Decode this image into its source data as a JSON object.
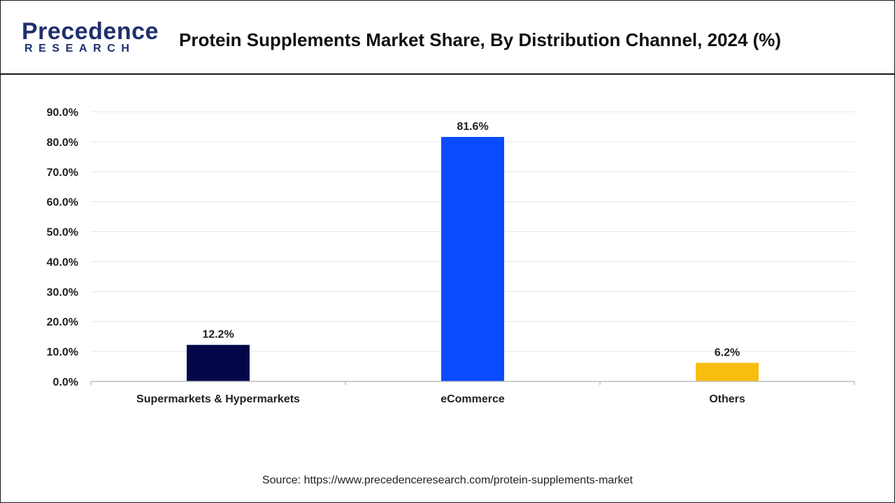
{
  "header": {
    "logo_word": "Precedence",
    "logo_sub": "RESEARCH",
    "title": "Protein Supplements Market Share, By Distribution Channel, 2024 (%)"
  },
  "chart_data": {
    "type": "bar",
    "title": "Protein Supplements Market Share, By Distribution Channel, 2024 (%)",
    "categories": [
      "Supermarkets & Hypermarkets",
      "eCommerce",
      "Others"
    ],
    "values": [
      12.2,
      81.6,
      6.2
    ],
    "value_labels": [
      "12.2%",
      "81.6%",
      "6.2%"
    ],
    "bar_colors": [
      "#03074a",
      "#0a4bff",
      "#f8be0f"
    ],
    "ylim": [
      0,
      90
    ],
    "yticks": [
      "0.0%",
      "10.0%",
      "20.0%",
      "30.0%",
      "40.0%",
      "50.0%",
      "60.0%",
      "70.0%",
      "80.0%",
      "90.0%"
    ],
    "grid": true,
    "xlabel": "",
    "ylabel": ""
  },
  "footer": {
    "source": "Source: https://www.precedenceresearch.com/protein-supplements-market"
  }
}
